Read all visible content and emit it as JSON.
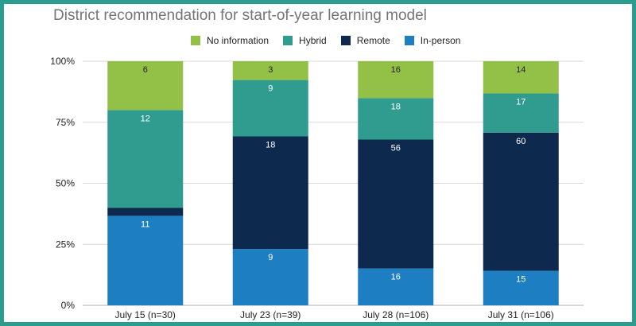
{
  "chart_data": {
    "type": "bar",
    "stacked": true,
    "percent_stacked": true,
    "title": "District recommendation for start-of-year learning model",
    "categories": [
      "July 15 (n=30)",
      "July 23 (n=39)",
      "July 28 (n=106)",
      "July 31 (n=106)"
    ],
    "series": [
      {
        "name": "In-person",
        "color": "#1d7fc1",
        "values": [
          11,
          9,
          16,
          15
        ]
      },
      {
        "name": "Remote",
        "color": "#0d2a4e",
        "values": [
          1,
          18,
          56,
          60
        ]
      },
      {
        "name": "Hybrid",
        "color": "#2f9c8f",
        "values": [
          12,
          9,
          18,
          17
        ]
      },
      {
        "name": "No information",
        "color": "#93c047",
        "values": [
          6,
          3,
          16,
          14
        ]
      }
    ],
    "data_labels": [
      [
        "11",
        "1",
        "12",
        "6"
      ],
      [
        "9",
        "18",
        "9",
        "3"
      ],
      [
        "16",
        "56",
        "18",
        "16"
      ],
      [
        "15",
        "60",
        "17",
        "14"
      ]
    ],
    "legend_order": [
      "No information",
      "Hybrid",
      "Remote",
      "In-person"
    ],
    "y_ticks": [
      "0%",
      "25%",
      "50%",
      "75%",
      "100%"
    ],
    "y_tick_values": [
      0,
      25,
      50,
      75,
      100
    ],
    "ylim": [
      0,
      100
    ],
    "grid": true,
    "legend_position": "top"
  },
  "colors": {
    "frame_border": "#2a9d8f",
    "gridline": "#d9d9d9"
  }
}
